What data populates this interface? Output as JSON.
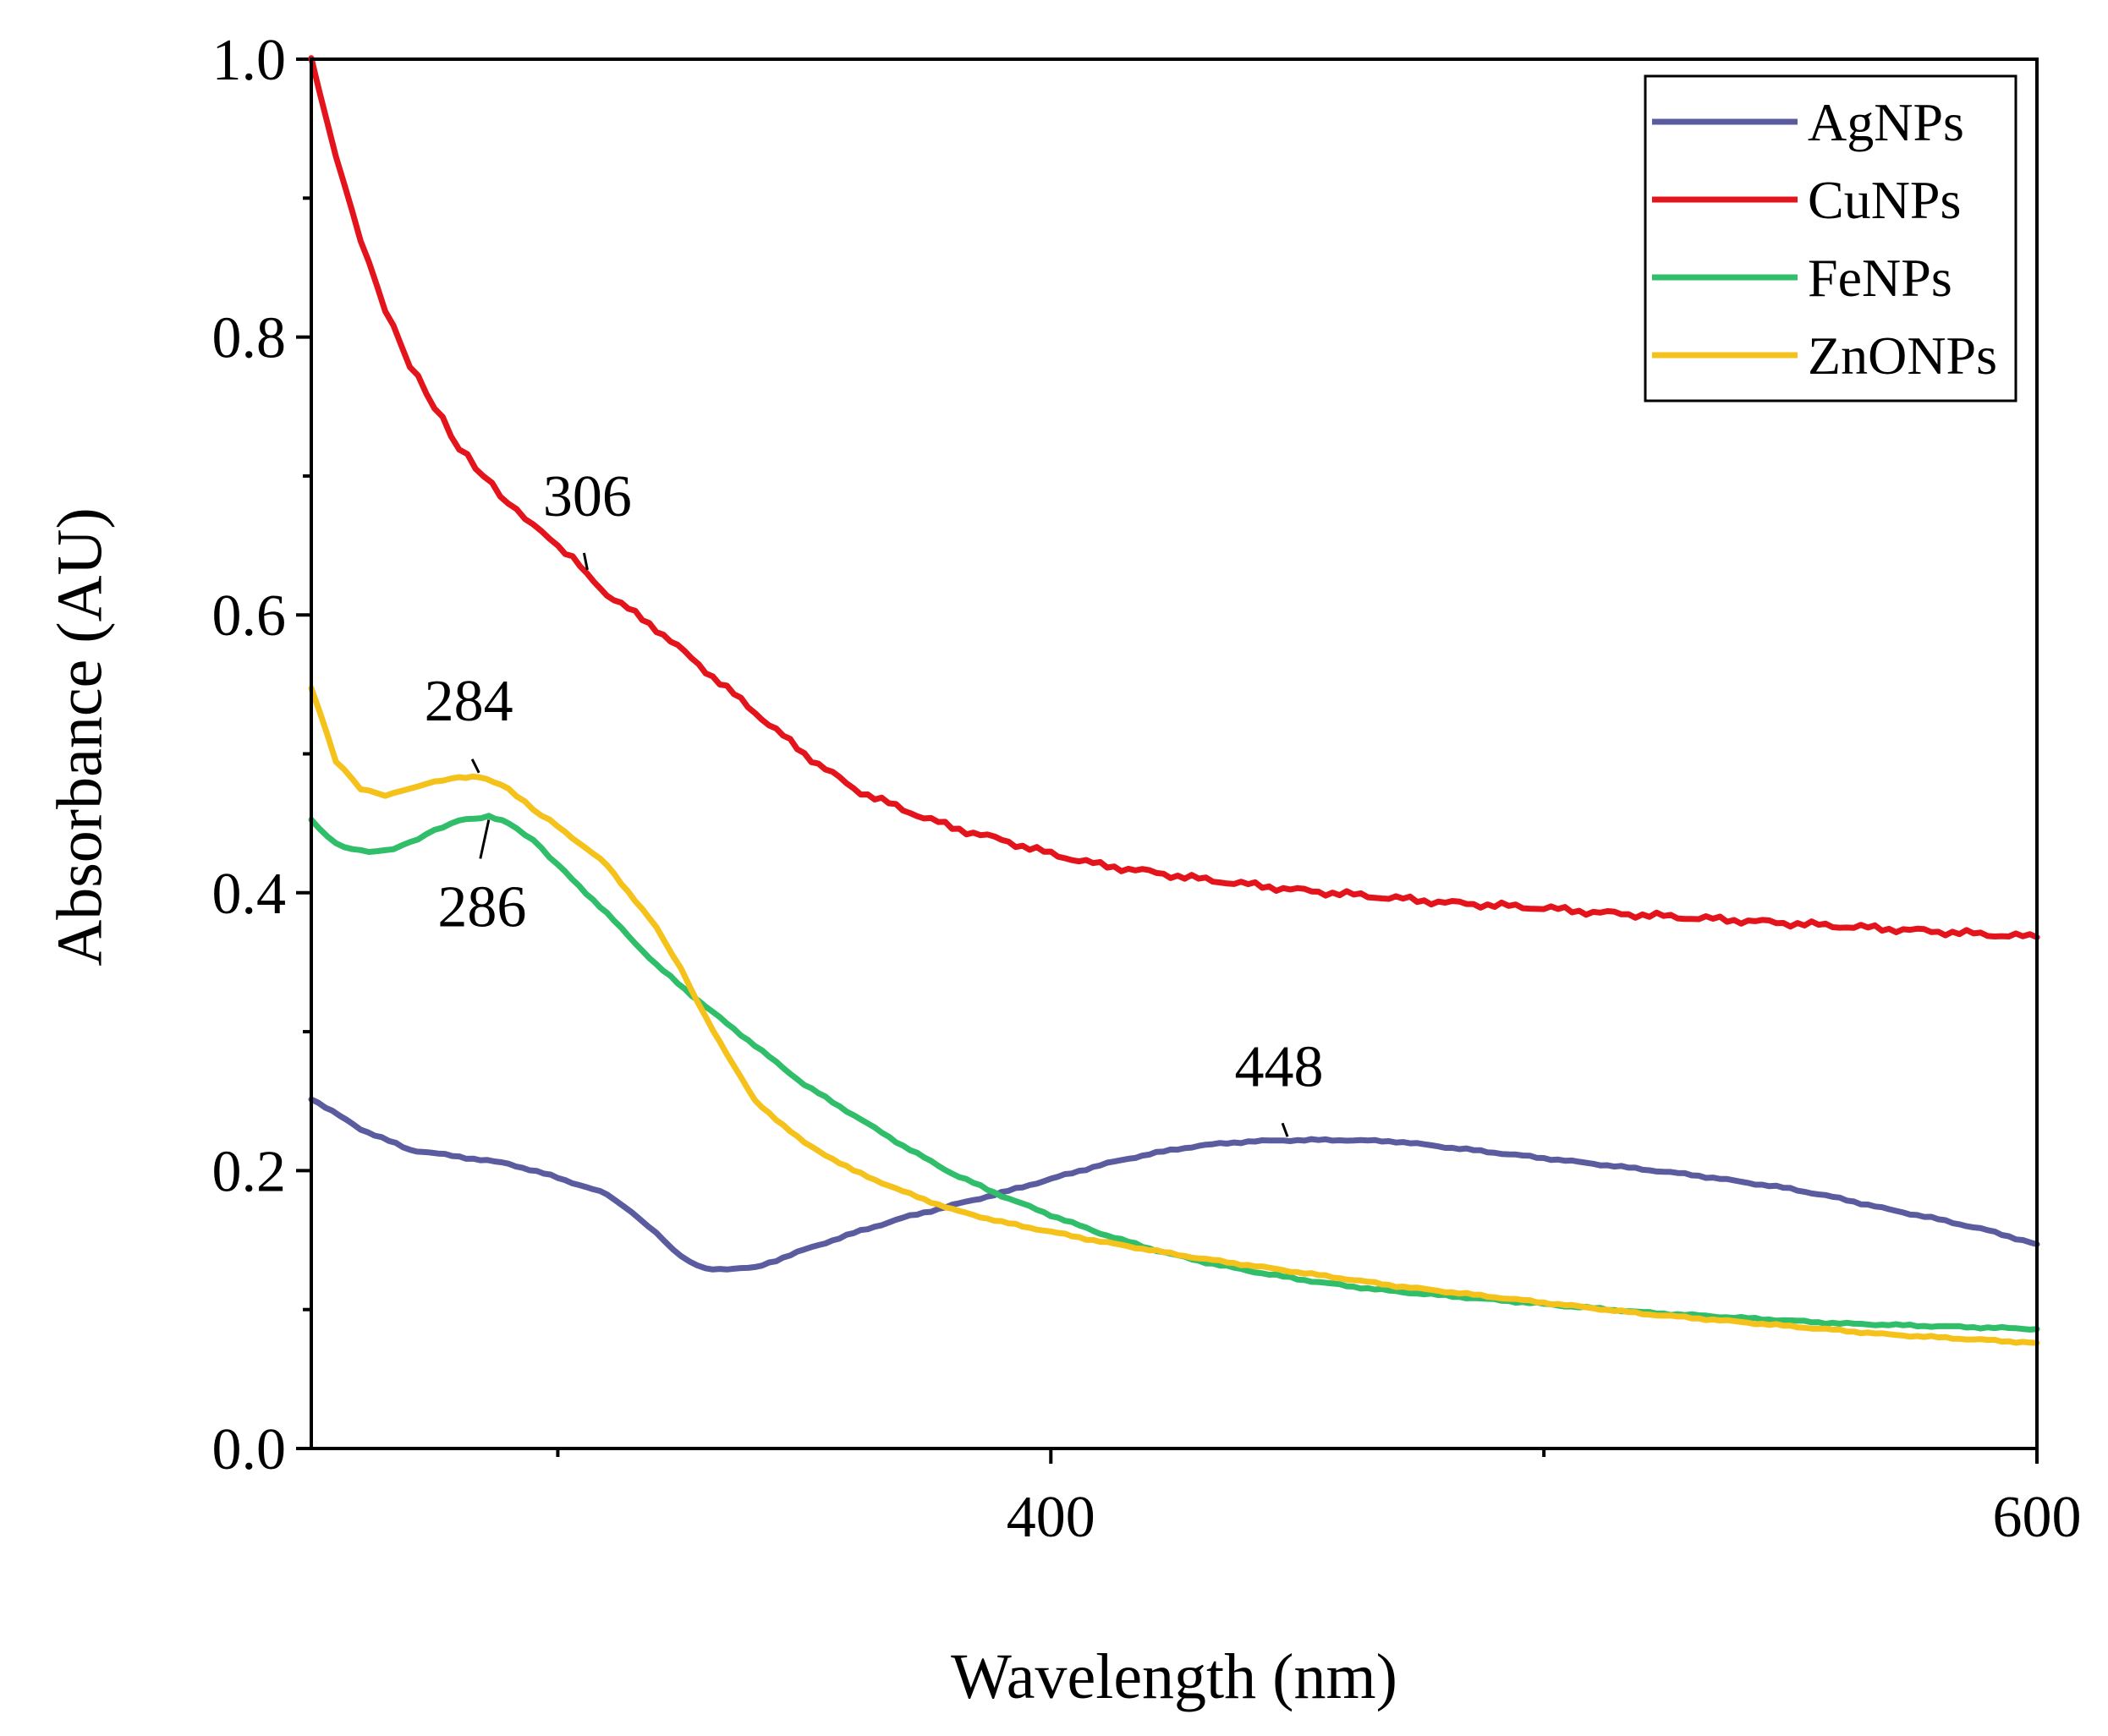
{
  "chart_data": {
    "type": "line",
    "xlabel": "Wavelength (nm)",
    "ylabel": "Absorbance (AU)",
    "xlim": [
      250,
      600
    ],
    "ylim": [
      0.0,
      1.0
    ],
    "x_ticks_major": [
      400,
      600
    ],
    "x_ticks_minor": [
      300,
      500
    ],
    "y_ticks_major": [
      "0.0",
      "0.2",
      "0.4",
      "0.6",
      "0.8",
      "1.0"
    ],
    "y_ticks_minor": [
      0.1,
      0.3,
      0.5,
      0.7,
      0.9
    ],
    "legend_position": "top-right",
    "series": [
      {
        "name": "AgNPs",
        "color": "#5b5ba0",
        "x": [
          250,
          260,
          270,
          280,
          290,
          300,
          310,
          315,
          320,
          325,
          330,
          340,
          350,
          360,
          370,
          380,
          390,
          400,
          410,
          420,
          430,
          440,
          450,
          460,
          470,
          480,
          490,
          500,
          510,
          520,
          530,
          540,
          550,
          560,
          570,
          580,
          590,
          600
        ],
        "values": [
          0.252,
          0.23,
          0.215,
          0.21,
          0.205,
          0.195,
          0.183,
          0.17,
          0.155,
          0.138,
          0.129,
          0.13,
          0.143,
          0.155,
          0.166,
          0.175,
          0.184,
          0.194,
          0.204,
          0.212,
          0.218,
          0.221,
          0.222,
          0.222,
          0.221,
          0.217,
          0.213,
          0.209,
          0.205,
          0.201,
          0.197,
          0.192,
          0.187,
          0.18,
          0.172,
          0.165,
          0.157,
          0.147
        ]
      },
      {
        "name": "CuNPs",
        "color": "#e3141b",
        "x": [
          250,
          255,
          260,
          265,
          270,
          275,
          280,
          285,
          290,
          295,
          300,
          306,
          310,
          320,
          330,
          340,
          350,
          360,
          370,
          380,
          390,
          400,
          410,
          420,
          430,
          440,
          450,
          460,
          470,
          480,
          490,
          500,
          510,
          520,
          530,
          540,
          550,
          560,
          570,
          580,
          590,
          600
        ],
        "values": [
          1.0,
          0.93,
          0.87,
          0.82,
          0.78,
          0.75,
          0.72,
          0.7,
          0.68,
          0.665,
          0.65,
          0.63,
          0.615,
          0.59,
          0.56,
          0.53,
          0.5,
          0.475,
          0.46,
          0.447,
          0.438,
          0.428,
          0.42,
          0.415,
          0.41,
          0.406,
          0.402,
          0.399,
          0.396,
          0.393,
          0.391,
          0.389,
          0.386,
          0.384,
          0.382,
          0.38,
          0.378,
          0.376,
          0.374,
          0.372,
          0.37,
          0.368
        ]
      },
      {
        "name": "FeNPs",
        "color": "#30be6a",
        "x": [
          250,
          255,
          260,
          265,
          270,
          275,
          280,
          286,
          290,
          295,
          300,
          310,
          320,
          330,
          340,
          350,
          360,
          370,
          380,
          390,
          400,
          410,
          420,
          430,
          440,
          450,
          460,
          470,
          480,
          490,
          500,
          510,
          520,
          530,
          540,
          550,
          560,
          570,
          580,
          590,
          600
        ],
        "values": [
          0.452,
          0.435,
          0.43,
          0.43,
          0.436,
          0.445,
          0.452,
          0.455,
          0.45,
          0.438,
          0.42,
          0.385,
          0.348,
          0.318,
          0.29,
          0.262,
          0.24,
          0.218,
          0.198,
          0.182,
          0.168,
          0.155,
          0.144,
          0.135,
          0.128,
          0.122,
          0.117,
          0.113,
          0.11,
          0.107,
          0.104,
          0.101,
          0.098,
          0.096,
          0.094,
          0.092,
          0.09,
          0.089,
          0.088,
          0.087,
          0.086
        ]
      },
      {
        "name": "ZnONPs",
        "color": "#f5c21b",
        "x": [
          250,
          255,
          260,
          265,
          270,
          275,
          280,
          284,
          290,
          295,
          300,
          310,
          320,
          325,
          330,
          340,
          350,
          360,
          370,
          380,
          390,
          400,
          410,
          420,
          430,
          440,
          450,
          460,
          470,
          480,
          490,
          500,
          510,
          520,
          530,
          540,
          550,
          560,
          570,
          580,
          590,
          600
        ],
        "values": [
          0.548,
          0.495,
          0.475,
          0.47,
          0.475,
          0.48,
          0.483,
          0.484,
          0.475,
          0.46,
          0.448,
          0.42,
          0.375,
          0.345,
          0.31,
          0.25,
          0.22,
          0.2,
          0.185,
          0.172,
          0.163,
          0.156,
          0.149,
          0.143,
          0.137,
          0.132,
          0.127,
          0.122,
          0.117,
          0.113,
          0.109,
          0.105,
          0.101,
          0.097,
          0.094,
          0.091,
          0.088,
          0.085,
          0.082,
          0.08,
          0.078,
          0.076
        ]
      }
    ],
    "annotations": [
      {
        "label": "306",
        "series": "CuNPs",
        "x": 306,
        "y": 0.63,
        "label_side": "above"
      },
      {
        "label": "284",
        "series": "ZnONPs",
        "x": 284,
        "y": 0.484,
        "label_side": "above"
      },
      {
        "label": "286",
        "series": "FeNPs",
        "x": 286,
        "y": 0.455,
        "label_side": "below"
      },
      {
        "label": "448",
        "series": "AgNPs",
        "x": 448,
        "y": 0.222,
        "label_side": "above"
      }
    ]
  }
}
